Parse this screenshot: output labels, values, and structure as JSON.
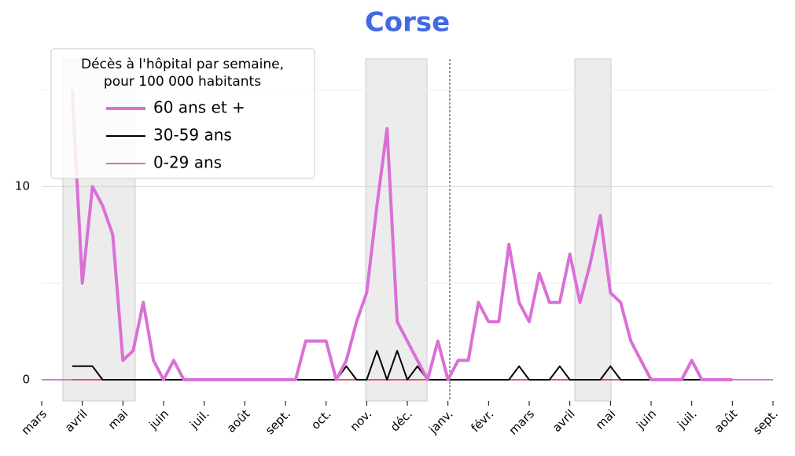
{
  "chart_data": {
    "type": "line",
    "title": "Corse",
    "legend_title": [
      "Décès à l'hôpital par semaine,",
      "pour 100 000 habitants"
    ],
    "legend_position": "upper left",
    "categories": [
      "mars",
      null,
      null,
      null,
      "avril",
      null,
      null,
      null,
      "mai",
      null,
      null,
      null,
      "juin",
      null,
      null,
      null,
      "juil.",
      null,
      null,
      null,
      "août",
      null,
      null,
      null,
      "sept.",
      null,
      null,
      null,
      "oct.",
      null,
      null,
      null,
      "nov.",
      null,
      null,
      null,
      "déc.",
      null,
      null,
      null,
      "janv.",
      null,
      null,
      null,
      "févr.",
      null,
      null,
      null,
      "mars",
      null,
      null,
      null,
      "avril",
      null,
      null,
      null,
      "mai",
      null,
      null,
      null,
      "juin",
      null,
      null,
      null,
      "juil.",
      null,
      null,
      null,
      "août",
      null,
      null,
      null,
      "sept."
    ],
    "series": [
      {
        "name": "60 ans et +",
        "color": "#da70d6",
        "width": 4,
        "values": [
          null,
          null,
          null,
          15,
          5,
          10,
          9,
          7.5,
          1,
          1.5,
          4,
          1,
          0,
          1,
          0,
          0,
          0,
          0,
          0,
          0,
          0,
          0,
          0,
          0,
          0,
          0,
          2,
          2,
          2,
          0,
          1,
          3,
          4.5,
          9,
          13,
          3,
          2,
          1,
          0,
          2,
          0,
          1,
          1,
          4,
          3,
          3,
          7,
          4,
          3,
          5.5,
          4,
          4,
          6.5,
          4,
          6,
          8.5,
          4.5,
          4,
          2,
          1,
          0,
          0,
          0,
          0,
          1,
          0,
          0,
          0,
          0,
          null,
          null,
          null,
          null
        ]
      },
      {
        "name": "30-59 ans",
        "color": "#000000",
        "width": 2,
        "values": [
          null,
          null,
          null,
          0.7,
          0.7,
          0.7,
          0,
          0,
          0,
          0,
          0,
          0,
          0,
          0,
          0,
          0,
          0,
          0,
          0,
          0,
          0,
          0,
          0,
          0,
          0,
          0,
          0,
          0,
          0,
          0,
          0.7,
          0,
          0,
          1.5,
          0,
          1.5,
          0,
          0.7,
          0,
          0,
          0,
          0,
          0,
          0,
          0,
          0,
          0,
          0.7,
          0,
          0,
          0,
          0.7,
          0,
          0,
          0,
          0,
          0.7,
          0,
          0,
          0,
          0,
          0,
          0,
          0,
          0,
          0,
          0,
          0,
          0,
          null,
          null,
          null,
          null
        ]
      },
      {
        "name": "0-29 ans",
        "color": "#d62728",
        "width": 1.2,
        "values": [
          null,
          null,
          null,
          0,
          0,
          0,
          0,
          0,
          0,
          0,
          0,
          0,
          0,
          0,
          0,
          0,
          0,
          0,
          0,
          0,
          0,
          0,
          0,
          0,
          0,
          0,
          0,
          0,
          0,
          0,
          0,
          0,
          0,
          0,
          0,
          0,
          0,
          0,
          0,
          0,
          0,
          0,
          0,
          0,
          0,
          0,
          0,
          0,
          0,
          0,
          0,
          0,
          0,
          0,
          0,
          0,
          0,
          0,
          0,
          0,
          0,
          0,
          0,
          0,
          0,
          0,
          0,
          0,
          0,
          null,
          null,
          null,
          null
        ]
      }
    ],
    "ylim": [
      -1.1,
      16.6
    ],
    "yticks": [
      0,
      10
    ],
    "y_minor_gridlines": [
      5,
      15
    ],
    "grid": true
  }
}
